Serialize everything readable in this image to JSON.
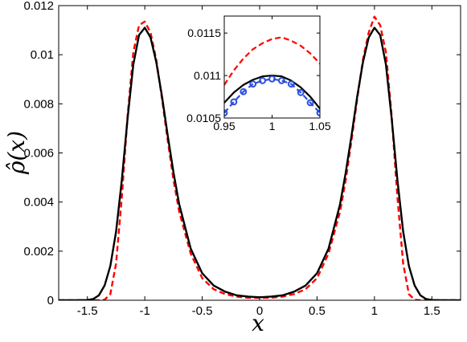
{
  "chart_data": [
    {
      "type": "line",
      "title": "",
      "xlabel": "x",
      "ylabel": "ρ̂(x)",
      "xlim": [
        -1.75,
        1.75
      ],
      "ylim": [
        0,
        0.012
      ],
      "x_ticks": [
        -1.5,
        -1,
        -0.5,
        0,
        0.5,
        1,
        1.5
      ],
      "x_tick_labels": [
        "-1.5",
        "-1",
        "-0.5",
        "0",
        "0.5",
        "1",
        "1.5"
      ],
      "y_ticks": [
        0,
        0.002,
        0.004,
        0.006,
        0.008,
        0.01,
        0.012
      ],
      "y_tick_labels": [
        "0",
        "0.002",
        "0.004",
        "0.006",
        "0.008",
        "0.01",
        "0.012"
      ],
      "grid": false,
      "series": [
        {
          "color": "#ff0000",
          "style": "dashed",
          "x": [
            -1.75,
            -1.5,
            -1.4,
            -1.35,
            -1.3,
            -1.25,
            -1.2,
            -1.15,
            -1.1,
            -1.05,
            -1.0,
            -0.95,
            -0.9,
            -0.85,
            -0.8,
            -0.75,
            -0.7,
            -0.6,
            -0.5,
            -0.4,
            -0.3,
            -0.2,
            -0.1,
            0,
            0.1,
            0.2,
            0.3,
            0.4,
            0.5,
            0.6,
            0.7,
            0.75,
            0.8,
            0.85,
            0.9,
            0.95,
            1.0,
            1.05,
            1.1,
            1.15,
            1.2,
            1.25,
            1.3,
            1.35,
            1.4,
            1.5,
            1.75
          ],
          "y": [
            0,
            0,
            0,
            2e-05,
            0.00025,
            0.0015,
            0.0042,
            0.0075,
            0.0101,
            0.0112,
            0.01135,
            0.0109,
            0.0098,
            0.0082,
            0.0065,
            0.0049,
            0.0036,
            0.0019,
            0.0009,
            0.00045,
            0.00025,
            0.00015,
            0.0001,
            0.0001,
            0.0001,
            0.00015,
            0.00025,
            0.00045,
            0.0009,
            0.0019,
            0.0036,
            0.0049,
            0.0065,
            0.0082,
            0.0098,
            0.0109,
            0.01155,
            0.0112,
            0.0101,
            0.0075,
            0.0042,
            0.0015,
            0.00025,
            2e-05,
            0,
            0,
            0
          ]
        },
        {
          "color": "#000000",
          "style": "solid",
          "x": [
            -1.75,
            -1.6,
            -1.5,
            -1.45,
            -1.4,
            -1.35,
            -1.3,
            -1.25,
            -1.2,
            -1.15,
            -1.1,
            -1.05,
            -1.0,
            -0.95,
            -0.9,
            -0.85,
            -0.8,
            -0.75,
            -0.7,
            -0.6,
            -0.5,
            -0.4,
            -0.3,
            -0.2,
            -0.1,
            0,
            0.1,
            0.2,
            0.3,
            0.4,
            0.5,
            0.6,
            0.7,
            0.75,
            0.8,
            0.85,
            0.9,
            0.95,
            1.0,
            1.05,
            1.1,
            1.15,
            1.2,
            1.25,
            1.3,
            1.35,
            1.4,
            1.45,
            1.5,
            1.6,
            1.75
          ],
          "y": [
            0,
            0,
            1e-05,
            5e-05,
            0.0002,
            0.0006,
            0.0014,
            0.0028,
            0.0049,
            0.0074,
            0.0096,
            0.0108,
            0.0111,
            0.0107,
            0.0097,
            0.0083,
            0.0067,
            0.0052,
            0.0039,
            0.0021,
            0.0011,
            0.0006,
            0.00035,
            0.0002,
            0.00015,
            0.00012,
            0.00015,
            0.0002,
            0.00035,
            0.0006,
            0.0011,
            0.0021,
            0.0039,
            0.0052,
            0.0067,
            0.0083,
            0.0097,
            0.0107,
            0.0111,
            0.0108,
            0.0096,
            0.0074,
            0.0049,
            0.0028,
            0.0014,
            0.0006,
            0.0002,
            5e-05,
            1e-05,
            0,
            0
          ]
        }
      ]
    },
    {
      "type": "line",
      "title": "",
      "xlabel": "",
      "ylabel": "",
      "xlim": [
        0.95,
        1.05
      ],
      "ylim": [
        0.0105,
        0.0117
      ],
      "x_ticks": [
        0.95,
        1,
        1.05
      ],
      "x_tick_labels": [
        "0.95",
        "1",
        "1.05"
      ],
      "y_ticks": [
        0.0105,
        0.011,
        0.0115
      ],
      "y_tick_labels": [
        "0.0105",
        "0.011",
        "0.0115"
      ],
      "grid": false,
      "series": [
        {
          "color": "#ff0000",
          "style": "dashed",
          "x": [
            0.95,
            0.96,
            0.97,
            0.98,
            0.99,
            1.0,
            1.01,
            1.02,
            1.03,
            1.04,
            1.05
          ],
          "y": [
            0.01089,
            0.01106,
            0.0112,
            0.01131,
            0.01138,
            0.01143,
            0.01145,
            0.01141,
            0.01135,
            0.01126,
            0.01114
          ]
        },
        {
          "color": "#000000",
          "style": "solid",
          "x": [
            0.95,
            0.96,
            0.97,
            0.98,
            0.99,
            1.0,
            1.01,
            1.02,
            1.03,
            1.04,
            1.05
          ],
          "y": [
            0.01068,
            0.0108,
            0.01089,
            0.01095,
            0.01099,
            0.011,
            0.01099,
            0.01094,
            0.01086,
            0.01075,
            0.01061
          ]
        },
        {
          "color": "#2b4fe0",
          "style": "dashed-markers",
          "marker": "circle",
          "x": [
            0.95,
            0.96,
            0.97,
            0.98,
            0.99,
            1.0,
            1.01,
            1.02,
            1.03,
            1.04,
            1.05
          ],
          "y": [
            0.01056,
            0.01069,
            0.01081,
            0.0109,
            0.01094,
            0.01096,
            0.01094,
            0.0109,
            0.0108,
            0.01068,
            0.01056
          ]
        }
      ]
    }
  ]
}
